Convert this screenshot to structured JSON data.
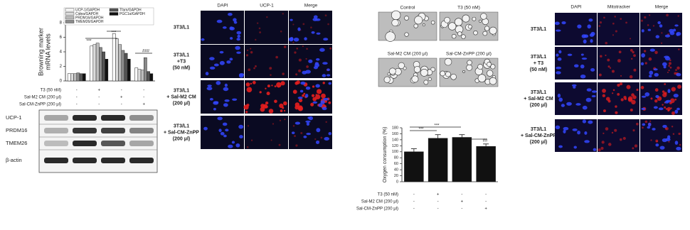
{
  "chart_data": [
    {
      "type": "bar",
      "ylabel": [
        "Browning marker",
        "mRNA levels"
      ],
      "categories": [
        null,
        null,
        null,
        null
      ],
      "series": [
        {
          "name": "UCP-1/GAPDH",
          "color": "#ffffff",
          "values": [
            1,
            4.8,
            6.5,
            1.8
          ]
        },
        {
          "name": "Cidea/GAPDH",
          "color": "#dcdcdc",
          "values": [
            1,
            5,
            5.8,
            1.6
          ]
        },
        {
          "name": "PRDM16/GAPDH",
          "color": "#bdbdbd",
          "values": [
            1,
            5.2,
            5,
            1.5
          ]
        },
        {
          "name": "TMEM26/GAPDH",
          "color": "#8a8a8a",
          "values": [
            1.1,
            4.6,
            4.2,
            3.2
          ]
        },
        {
          "name": "Tfam/GAPDH",
          "color": "#555555",
          "values": [
            1,
            4,
            3.8,
            1.3
          ]
        },
        {
          "name": "PGC1α/GAPDH",
          "color": "#111111",
          "values": [
            1,
            3,
            3,
            1
          ]
        }
      ],
      "ylim": [
        0,
        8
      ],
      "yticks": [
        0,
        2,
        4,
        6,
        8
      ],
      "annotations": [
        "***",
        "***",
        "###"
      ],
      "treatments": [
        {
          "name": "T3 (50 nM)",
          "signs": [
            "-",
            "+",
            "-",
            "-"
          ]
        },
        {
          "name": "Sal-M2 CM (200 μl)",
          "signs": [
            "-",
            "-",
            "+",
            "-"
          ]
        },
        {
          "name": "Sal-CM-ZnPP (200 μl)",
          "signs": [
            "-",
            "-",
            "-",
            "+"
          ]
        }
      ]
    },
    {
      "type": "bar",
      "ylabel": [
        "Oxygen consumption (%)"
      ],
      "categories": [
        null,
        null,
        null,
        null
      ],
      "series": [
        {
          "name": null,
          "color": "#111111",
          "values": [
            100,
            145,
            148,
            118
          ],
          "errors": [
            10,
            12,
            9,
            8
          ]
        }
      ],
      "ylim": [
        0,
        180
      ],
      "yticks": [
        0,
        20,
        40,
        60,
        80,
        100,
        120,
        140,
        160,
        180
      ],
      "annotations": [
        "***",
        "***",
        "##"
      ],
      "treatments": [
        {
          "name": "T3 (50 nM)",
          "signs": [
            "-",
            "+",
            "-",
            "-"
          ]
        },
        {
          "name": "Sal-M2 CM (200 μl)",
          "signs": [
            "-",
            "-",
            "+",
            "-"
          ]
        },
        {
          "name": "Sal-CM-ZnPP (200 μl)",
          "signs": [
            "-",
            "-",
            "-",
            "+"
          ]
        }
      ]
    }
  ],
  "western_blot": {
    "labels": [
      "UCP-1",
      "PRDM16",
      "TMEM26",
      "β-actin"
    ]
  },
  "light_microscopy": {
    "labels": [
      "Control",
      "T3 (50 nM)",
      "Sal-M2 CM (200 μl)",
      "Sal-CM-ZnPP (200 μl)"
    ]
  },
  "micrographs": [
    {
      "columns": [
        "DAPI",
        "UCP-1",
        "Merge"
      ],
      "rows": [
        [
          "3T3/L1"
        ],
        [
          "3T3/L1",
          "+T3",
          "(50 nM)"
        ],
        [
          "3T3/L1",
          "+ Sal-M2 CM",
          "(200 μl)"
        ],
        [
          "3T3/L1",
          "+ Sal-CM-ZnPP",
          "(200 μl)"
        ]
      ]
    },
    {
      "columns": [
        "DAPI",
        "Mitotracker",
        "Merge"
      ],
      "rows": [
        [
          "3T3/L1"
        ],
        [
          "3T3/L1",
          "+ T3",
          "(50 nM)"
        ],
        [
          "3T3/L1",
          "+ Sal-M2 CM",
          "(200 μl)"
        ],
        [
          "3T3/L1",
          "+ Sal-CM-ZnPP",
          "(200 μl)"
        ]
      ]
    }
  ]
}
